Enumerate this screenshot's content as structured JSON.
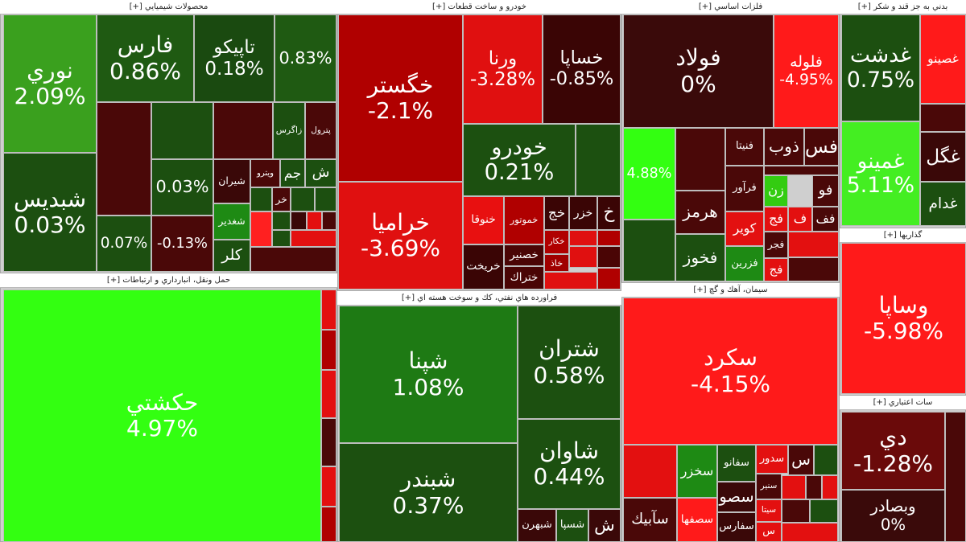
{
  "sectors": [
    {
      "title": "محصولات شيميايي [+]",
      "tiles": [
        {
          "label": "نوري",
          "change": "2.09%",
          "color": "#3aa01e"
        },
        {
          "label": "شبديس",
          "change": "0.03%",
          "color": "#1c4f10"
        },
        {
          "label": "فارس",
          "change": "0.86%",
          "color": "#1f5a12"
        },
        {
          "label": "تاپيكو",
          "change": "0.18%",
          "color": "#1a4a10"
        },
        {
          "change": "0.83%",
          "color": "#1f5a12"
        },
        {
          "color": "#4a0808"
        },
        {
          "color": "#1c4f10"
        },
        {
          "color": "#4a0808"
        },
        {
          "label": "زاگرس",
          "color": "#1c4f10"
        },
        {
          "label": "پترول",
          "color": "#4a0808"
        },
        {
          "change": "0.03%",
          "color": "#1c4f10"
        },
        {
          "change": "0.07%",
          "color": "#1c4f10"
        },
        {
          "change": "-0.13%",
          "color": "#4a0808"
        },
        {
          "label": "شيران",
          "color": "#3a0808"
        },
        {
          "label": "ويترو",
          "color": "#4a0808"
        },
        {
          "label": "جم",
          "color": "#1c4f10"
        },
        {
          "label": "ش",
          "color": "#1c4f10"
        },
        {
          "label": "شغدير",
          "color": "#1e8a14"
        },
        {
          "label": "كلر",
          "color": "#1c4f10"
        },
        {
          "color": "#1c4f10"
        },
        {
          "label": "خر",
          "color": "#4a0808"
        },
        {
          "color": "#1c4f10"
        },
        {
          "color": "#1c4f10"
        },
        {
          "color": "#ff2020"
        },
        {
          "color": "#1c4f10"
        },
        {
          "color": "#3a0808"
        },
        {
          "color": "#e31010"
        },
        {
          "color": "#4a0808"
        },
        {
          "color": "#1c4f10"
        },
        {
          "color": "#e31010"
        },
        {
          "color": "#4a0808"
        }
      ]
    },
    {
      "title": "خودرو و ساخت قطعات [+]",
      "tiles": [
        {
          "label": "خگستر",
          "change": "-2.1%",
          "color": "#b00000"
        },
        {
          "label": "خراميا",
          "change": "-3.69%",
          "color": "#e01010"
        },
        {
          "label": "ورنا",
          "change": "-3.28%",
          "color": "#e01010"
        },
        {
          "label": "خساپا",
          "change": "-0.85%",
          "color": "#3a0505"
        },
        {
          "label": "خودرو",
          "change": "0.21%",
          "color": "#1c5010"
        },
        {
          "color": "#1c5010"
        },
        {
          "label": "خنوقا",
          "color": "#e81010"
        },
        {
          "label": "خموتور",
          "color": "#b00000"
        },
        {
          "label": "خج",
          "color": "#3a0505"
        },
        {
          "label": "خزر",
          "color": "#3a0505"
        },
        {
          "label": "خ",
          "color": "#3a0505"
        },
        {
          "label": "خريخت",
          "color": "#3a0505"
        },
        {
          "label": "خصنير",
          "color": "#4a0505"
        },
        {
          "label": "ختراك",
          "color": "#4a0505"
        },
        {
          "label": "خكار",
          "color": "#b00000"
        },
        {
          "label": "خاذ",
          "color": "#a00000"
        },
        {
          "color": "#e01010"
        },
        {
          "color": "#b00000"
        },
        {
          "color": "#e01010"
        },
        {
          "color": "#4a0505"
        },
        {
          "color": "#e01010"
        },
        {
          "color": "#b00000"
        }
      ]
    },
    {
      "title": "فلزات اساسي [+]",
      "tiles": [
        {
          "label": "فولاد",
          "change": "0%",
          "color": "#3a0a0a"
        },
        {
          "label": "فلوله",
          "change": "-4.95%",
          "color": "#ff1a1a"
        },
        {
          "change": "4.88%",
          "color": "#33ff11"
        },
        {
          "color": "#4a0808"
        },
        {
          "label": "فنيتا",
          "color": "#4a0808"
        },
        {
          "label": "ذوب",
          "color": "#4a0808"
        },
        {
          "label": "فس",
          "color": "#4a0808"
        },
        {
          "label": "هرمز",
          "color": "#4a0808"
        },
        {
          "label": "فخوز",
          "color": "#1c4f10"
        },
        {
          "label": "فرآور",
          "color": "#4a0808"
        },
        {
          "label": "زن",
          "color": "#33cc11"
        },
        {
          "label": "فو",
          "color": "#4a0808"
        },
        {
          "label": "كوير",
          "color": "#e31010"
        },
        {
          "label": "فزرين",
          "color": "#1e8a14"
        },
        {
          "label": "فج",
          "color": "#e31010"
        },
        {
          "label": "فجر",
          "color": "#4a0808"
        },
        {
          "label": "فج",
          "color": "#e31010"
        },
        {
          "label": "ف",
          "color": "#e31010"
        },
        {
          "label": "فف",
          "color": "#4a0808"
        },
        {
          "color": "#1c4f10"
        },
        {
          "color": "#4a0808"
        },
        {
          "color": "#e31010"
        },
        {
          "color": "#4a0808"
        }
      ]
    },
    {
      "title": "بدني به جز قند و شكر [+]",
      "tiles": [
        {
          "label": "غدشت",
          "change": "0.75%",
          "color": "#1c4f10"
        },
        {
          "label": "غصينو",
          "color": "#ff1a1a"
        },
        {
          "color": "#4a0808"
        },
        {
          "label": "غمينو",
          "change": "5.11%",
          "color": "#44ee22"
        },
        {
          "label": "غگل",
          "color": "#3a0808"
        },
        {
          "label": "غدام",
          "color": "#1c4f10"
        }
      ]
    },
    {
      "title": "گذاريها [+]",
      "tiles": [
        {
          "label": "وساپا",
          "change": "-5.98%",
          "color": "#ff1a1a"
        }
      ]
    },
    {
      "title": "سات اعتباري [+]",
      "tiles": [
        {
          "label": "دي",
          "change": "-1.28%",
          "color": "#6a0a0a"
        },
        {
          "label": "وبصادر",
          "change": "0%",
          "color": "#3a0a0a"
        },
        {
          "color": "#4a0808"
        }
      ]
    },
    {
      "title": "حمل ونقل، انبارداري و ارتباطات [+]",
      "tiles": [
        {
          "label": "حكشتي",
          "change": "4.97%",
          "color": "#33ff11"
        },
        {
          "color": "#e31010"
        },
        {
          "color": "#b00000"
        },
        {
          "color": "#e31010"
        },
        {
          "color": "#4a0808"
        },
        {
          "color": "#e31010"
        },
        {
          "color": "#b00000"
        }
      ]
    },
    {
      "title": "فراورده هاي نفتي، كك و سوخت هسته اي [+]",
      "tiles": [
        {
          "label": "شپنا",
          "change": "1.08%",
          "color": "#1e7a14"
        },
        {
          "label": "شبندر",
          "change": "0.37%",
          "color": "#1c5010"
        },
        {
          "label": "شتران",
          "change": "0.58%",
          "color": "#1c5010"
        },
        {
          "label": "شاوان",
          "change": "0.44%",
          "color": "#1c5010"
        },
        {
          "label": "شبهرن",
          "color": "#3a0808"
        },
        {
          "label": "شسپا",
          "color": "#1c4f10"
        },
        {
          "label": "ش",
          "color": "#3a0808"
        }
      ]
    },
    {
      "title": "سيمان، آهك و گچ [+]",
      "tiles": [
        {
          "label": "سكرد",
          "change": "-4.15%",
          "color": "#ff1a1a"
        },
        {
          "color": "#e31010"
        },
        {
          "label": "سخزر",
          "color": "#1e8a14"
        },
        {
          "label": "سفانو",
          "color": "#1c4f10"
        },
        {
          "label": "سدور",
          "color": "#e31010"
        },
        {
          "label": "س",
          "color": "#4a0808"
        },
        {
          "color": "#1c4f10"
        },
        {
          "label": "سآبيك",
          "color": "#4a0808"
        },
        {
          "label": "سصفها",
          "color": "#ff1a1a"
        },
        {
          "label": "سصو",
          "color": "#3a0808"
        },
        {
          "label": "سفارس",
          "color": "#3a0808"
        },
        {
          "label": "سنير",
          "color": "#4a0808"
        },
        {
          "label": "سيتا",
          "color": "#e31010"
        },
        {
          "label": "س",
          "color": "#e31010"
        },
        {
          "color": "#e31010"
        },
        {
          "color": "#4a0808"
        },
        {
          "color": "#e31010"
        },
        {
          "color": "#4a0808"
        },
        {
          "color": "#1c4f10"
        },
        {
          "color": "#e31010"
        }
      ]
    }
  ]
}
